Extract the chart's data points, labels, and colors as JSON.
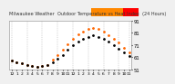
{
  "title": "Milwaukee Weather  Outdoor Temperature vs Heat Index  (24 Hours)",
  "bg_color": "#f0f0f0",
  "plot_bg": "#ffffff",
  "grid_color": "#aaaaaa",
  "temp_color": "#000000",
  "heat_color": "#ff6600",
  "legend_orange_color": "#ff8800",
  "legend_red_color": "#ff0000",
  "ylim": [
    51,
    91
  ],
  "yticks": [
    51,
    61,
    71,
    81,
    91
  ],
  "ylabel_fontsize": 3.8,
  "xlabel_fontsize": 3.2,
  "title_fontsize": 3.6,
  "x_hours": [
    0,
    1,
    2,
    3,
    4,
    5,
    6,
    7,
    8,
    9,
    10,
    11,
    12,
    13,
    14,
    15,
    16,
    17,
    18,
    19,
    20,
    21,
    22,
    23
  ],
  "x_labels": [
    "12",
    "1",
    "2",
    "3",
    "4",
    "5",
    "6",
    "7",
    "8",
    "9",
    "10",
    "11",
    "12",
    "1",
    "2",
    "3",
    "4",
    "5",
    "6",
    "7",
    "8",
    "9",
    "10",
    "11"
  ],
  "temp_values": [
    58,
    57,
    56,
    55,
    54,
    53,
    54,
    55,
    57,
    60,
    63,
    67,
    71,
    74,
    76,
    78,
    79,
    78,
    76,
    74,
    71,
    68,
    65,
    62
  ],
  "heat_values": [
    58,
    57,
    56,
    55,
    54,
    53,
    54,
    55,
    59,
    63,
    67,
    72,
    76,
    80,
    82,
    84,
    85,
    84,
    82,
    79,
    76,
    73,
    69,
    65
  ],
  "vgrid_positions": [
    0,
    3,
    6,
    9,
    12,
    15,
    18,
    21,
    23
  ],
  "marker_size": 1.0
}
